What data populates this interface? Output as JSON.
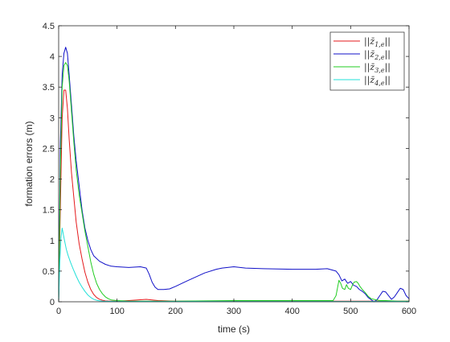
{
  "chart_data": {
    "type": "line",
    "title": "",
    "xlabel": "time (s)",
    "ylabel": "formation errors (m)",
    "xlim": [
      0,
      600
    ],
    "ylim": [
      0,
      4.5
    ],
    "xticks": [
      0,
      100,
      200,
      300,
      400,
      500,
      600
    ],
    "yticks": [
      0,
      0.5,
      1,
      1.5,
      2,
      2.5,
      3,
      3.5,
      4,
      4.5
    ],
    "xtick_labels": [
      "0",
      "100",
      "200",
      "300",
      "400",
      "500",
      "600"
    ],
    "ytick_labels": [
      "0",
      "0.5",
      "1",
      "1.5",
      "2",
      "2.5",
      "3",
      "3.5",
      "4",
      "4.5"
    ],
    "grid": false,
    "legend_position": "top-right",
    "series": [
      {
        "name": "||z̄1,e||",
        "legend_main": "||z̄",
        "legend_sub": "1,e",
        "legend_tail": "||",
        "color": "#e41a1c",
        "x": [
          0,
          3,
          6,
          9,
          12,
          15,
          18,
          22,
          26,
          30,
          35,
          40,
          45,
          50,
          55,
          60,
          65,
          70,
          75,
          80,
          90,
          100,
          120,
          150,
          170,
          200,
          300,
          400,
          500,
          600
        ],
        "y": [
          0,
          1.6,
          3.0,
          3.45,
          3.45,
          3.15,
          2.65,
          2.1,
          1.7,
          1.3,
          0.95,
          0.7,
          0.48,
          0.32,
          0.2,
          0.12,
          0.07,
          0.04,
          0.025,
          0.015,
          0.01,
          0.01,
          0.02,
          0.04,
          0.02,
          0.01,
          0.01,
          0.01,
          0.01,
          0.01
        ]
      },
      {
        "name": "||z̄2,e||",
        "legend_main": "||z̄",
        "legend_sub": "2,e",
        "legend_tail": "||",
        "color": "#1010c8",
        "x": [
          0,
          3,
          6,
          9,
          12,
          15,
          18,
          22,
          26,
          30,
          35,
          40,
          45,
          50,
          55,
          60,
          70,
          80,
          90,
          100,
          120,
          140,
          150,
          155,
          160,
          165,
          170,
          180,
          190,
          200,
          220,
          250,
          270,
          280,
          300,
          320,
          350,
          400,
          440,
          460,
          475,
          480,
          485,
          490,
          495,
          500,
          505,
          510,
          515,
          520,
          525,
          530,
          540,
          545,
          550,
          555,
          560,
          565,
          570,
          575,
          580,
          585,
          590,
          595,
          600
        ],
        "y": [
          0,
          2.6,
          3.7,
          4.05,
          4.15,
          4.05,
          3.7,
          3.2,
          2.7,
          2.3,
          1.9,
          1.5,
          1.2,
          1.0,
          0.85,
          0.75,
          0.66,
          0.61,
          0.58,
          0.57,
          0.56,
          0.57,
          0.55,
          0.45,
          0.32,
          0.24,
          0.2,
          0.2,
          0.21,
          0.25,
          0.34,
          0.47,
          0.53,
          0.55,
          0.57,
          0.55,
          0.54,
          0.53,
          0.53,
          0.54,
          0.5,
          0.44,
          0.34,
          0.37,
          0.3,
          0.33,
          0.27,
          0.25,
          0.2,
          0.17,
          0.13,
          0.07,
          0.0,
          0.03,
          0.1,
          0.17,
          0.16,
          0.1,
          0.04,
          0.08,
          0.15,
          0.22,
          0.2,
          0.1,
          0.05
        ]
      },
      {
        "name": "||z̄3,e||",
        "legend_main": "||z̄",
        "legend_sub": "3,e",
        "legend_tail": "||",
        "color": "#22cc22",
        "x": [
          0,
          3,
          6,
          9,
          12,
          15,
          18,
          22,
          26,
          30,
          35,
          40,
          45,
          50,
          55,
          60,
          65,
          70,
          75,
          80,
          85,
          90,
          100,
          120,
          150,
          200,
          300,
          400,
          470,
          475,
          478,
          480,
          483,
          486,
          490,
          493,
          496,
          500,
          503,
          506,
          510,
          513,
          516,
          520,
          525,
          530,
          535,
          540,
          545,
          550,
          560,
          580,
          600
        ],
        "y": [
          0,
          2.2,
          3.5,
          3.85,
          3.9,
          3.85,
          3.6,
          3.1,
          2.6,
          2.15,
          1.75,
          1.45,
          1.15,
          0.9,
          0.65,
          0.45,
          0.3,
          0.2,
          0.13,
          0.08,
          0.05,
          0.03,
          0.02,
          0.01,
          0.01,
          0.01,
          0.02,
          0.02,
          0.02,
          0.1,
          0.25,
          0.35,
          0.3,
          0.22,
          0.2,
          0.28,
          0.22,
          0.2,
          0.27,
          0.32,
          0.33,
          0.3,
          0.25,
          0.2,
          0.15,
          0.09,
          0.05,
          0.04,
          0.03,
          0.02,
          0.02,
          0.01,
          0.01
        ]
      },
      {
        "name": "||z̄4,e||",
        "legend_main": "||z̄",
        "legend_sub": "4,e",
        "legend_tail": "||",
        "color": "#22e0d8",
        "x": [
          0,
          2,
          4,
          6,
          8,
          10,
          13,
          16,
          20,
          25,
          30,
          35,
          40,
          45,
          50,
          55,
          60,
          65,
          70,
          75,
          80,
          90,
          100,
          120,
          150,
          200,
          300,
          400,
          500,
          600
        ],
        "y": [
          0,
          0.65,
          1.05,
          1.2,
          1.1,
          1.0,
          0.86,
          0.76,
          0.65,
          0.53,
          0.42,
          0.32,
          0.24,
          0.17,
          0.11,
          0.07,
          0.04,
          0.025,
          0.015,
          0.01,
          0.008,
          0.006,
          0.005,
          0.005,
          0.005,
          0.005,
          0.005,
          0.005,
          0.005,
          0.005
        ]
      }
    ]
  }
}
